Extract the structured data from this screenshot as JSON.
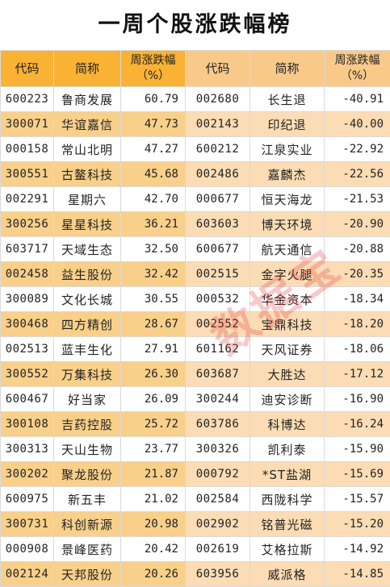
{
  "title": "一周个股涨跌幅榜",
  "headers": {
    "code": "代码",
    "name": "简称",
    "change_line1": "周涨跌幅",
    "change_line2": "（%）"
  },
  "watermark": "数据宝",
  "colors": {
    "header_left": "#f9b233",
    "header_right": "#f9c98a",
    "row_even_left": "#f9d08a",
    "row_even_right": "#fbdcb4"
  },
  "rows": [
    {
      "l_code": "600223",
      "l_name": "鲁商发展",
      "l_chg": "60.79",
      "r_code": "002680",
      "r_name": "长生退",
      "r_chg": "-40.91"
    },
    {
      "l_code": "300071",
      "l_name": "华谊嘉信",
      "l_chg": "47.73",
      "r_code": "002143",
      "r_name": "印纪退",
      "r_chg": "-40.00"
    },
    {
      "l_code": "000158",
      "l_name": "常山北明",
      "l_chg": "47.27",
      "r_code": "600212",
      "r_name": "江泉实业",
      "r_chg": "-22.92"
    },
    {
      "l_code": "300551",
      "l_name": "古鳌科技",
      "l_chg": "45.68",
      "r_code": "002486",
      "r_name": "嘉麟杰",
      "r_chg": "-22.56"
    },
    {
      "l_code": "002291",
      "l_name": "星期六",
      "l_chg": "42.70",
      "r_code": "000677",
      "r_name": "恒天海龙",
      "r_chg": "-21.53"
    },
    {
      "l_code": "300256",
      "l_name": "星星科技",
      "l_chg": "36.21",
      "r_code": "603603",
      "r_name": "博天环境",
      "r_chg": "-20.90"
    },
    {
      "l_code": "603717",
      "l_name": "天域生态",
      "l_chg": "32.50",
      "r_code": "600677",
      "r_name": "航天通信",
      "r_chg": "-20.88"
    },
    {
      "l_code": "002458",
      "l_name": "益生股份",
      "l_chg": "32.42",
      "r_code": "002515",
      "r_name": "金字火腿",
      "r_chg": "-20.35"
    },
    {
      "l_code": "300089",
      "l_name": "文化长城",
      "l_chg": "30.55",
      "r_code": "000532",
      "r_name": "华金资本",
      "r_chg": "-18.34"
    },
    {
      "l_code": "300468",
      "l_name": "四方精创",
      "l_chg": "28.67",
      "r_code": "002552",
      "r_name": "宝鼎科技",
      "r_chg": "-18.20"
    },
    {
      "l_code": "002513",
      "l_name": "蓝丰生化",
      "l_chg": "27.91",
      "r_code": "601162",
      "r_name": "天风证券",
      "r_chg": "-18.06"
    },
    {
      "l_code": "300552",
      "l_name": "万集科技",
      "l_chg": "26.30",
      "r_code": "603687",
      "r_name": "大胜达",
      "r_chg": "-17.12"
    },
    {
      "l_code": "600467",
      "l_name": "好当家",
      "l_chg": "26.09",
      "r_code": "300244",
      "r_name": "迪安诊断",
      "r_chg": "-16.90"
    },
    {
      "l_code": "300108",
      "l_name": "吉药控股",
      "l_chg": "25.72",
      "r_code": "603786",
      "r_name": "科博达",
      "r_chg": "-16.24"
    },
    {
      "l_code": "300313",
      "l_name": "天山生物",
      "l_chg": "23.77",
      "r_code": "300326",
      "r_name": "凯利泰",
      "r_chg": "-15.90"
    },
    {
      "l_code": "300202",
      "l_name": "聚龙股份",
      "l_chg": "21.87",
      "r_code": "000792",
      "r_name": "*ST盐湖",
      "r_chg": "-15.69"
    },
    {
      "l_code": "600975",
      "l_name": "新五丰",
      "l_chg": "21.02",
      "r_code": "002584",
      "r_name": "西陇科学",
      "r_chg": "-15.57"
    },
    {
      "l_code": "300731",
      "l_name": "科创新源",
      "l_chg": "20.98",
      "r_code": "002902",
      "r_name": "铭普光磁",
      "r_chg": "-15.20"
    },
    {
      "l_code": "000908",
      "l_name": "景峰医药",
      "l_chg": "20.42",
      "r_code": "002619",
      "r_name": "艾格拉斯",
      "r_chg": "-14.92"
    },
    {
      "l_code": "002124",
      "l_name": "天邦股份",
      "l_chg": "20.26",
      "r_code": "603956",
      "r_name": "威派格",
      "r_chg": "-14.85"
    }
  ]
}
